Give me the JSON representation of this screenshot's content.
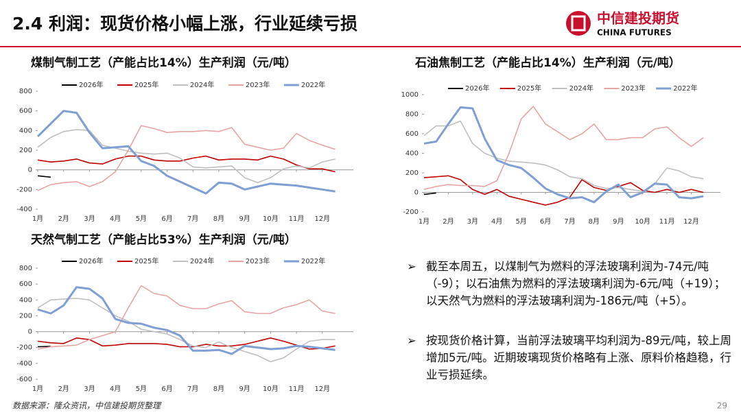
{
  "header": {
    "title": "2.4 利润：现货价格小幅上涨，行业延续亏损",
    "logo_cn": "中信建投期货",
    "logo_en": "CHINA FUTURES"
  },
  "chart_data": [
    {
      "type": "line",
      "title": "煤制气制工艺（产能占比14%）生产利润（元/吨）",
      "x": [
        1,
        1.5,
        2,
        2.5,
        3,
        3.5,
        4,
        4.5,
        5,
        5.5,
        6,
        6.5,
        7,
        7.5,
        8,
        8.5,
        9,
        9.5,
        10,
        10.5,
        11,
        11.5,
        12,
        12.5
      ],
      "xlim": [
        1,
        13.2
      ],
      "xticks": [
        {
          "value": 1,
          "label": "1月"
        },
        {
          "value": 2,
          "label": "2月"
        },
        {
          "value": 3,
          "label": "3月"
        },
        {
          "value": 4,
          "label": "4月"
        },
        {
          "value": 5,
          "label": "5月"
        },
        {
          "value": 6,
          "label": "6月"
        },
        {
          "value": 7,
          "label": "7月"
        },
        {
          "value": 8,
          "label": "8月"
        },
        {
          "value": 9,
          "label": "9月"
        },
        {
          "value": 10,
          "label": "10月"
        },
        {
          "value": 11,
          "label": "11月"
        },
        {
          "value": 12,
          "label": "12月"
        }
      ],
      "ylim": [
        -400,
        800
      ],
      "yticks": [
        -400,
        -200,
        0,
        200,
        400,
        600,
        800
      ],
      "series": [
        {
          "name": "2026年",
          "color": "#000000",
          "values": [
            -60,
            -74,
            null,
            null,
            null,
            null,
            null,
            null,
            null,
            null,
            null,
            null,
            null,
            null,
            null,
            null,
            null,
            null,
            null,
            null,
            null,
            null,
            null,
            null
          ]
        },
        {
          "name": "2025年",
          "color": "#c00000",
          "values": [
            100,
            80,
            90,
            110,
            70,
            60,
            110,
            140,
            140,
            100,
            90,
            90,
            120,
            140,
            100,
            110,
            110,
            100,
            140,
            110,
            50,
            10,
            10,
            -20
          ]
        },
        {
          "name": "2024年",
          "color": "#bfbfbf",
          "values": [
            230,
            330,
            390,
            410,
            400,
            250,
            220,
            190,
            170,
            160,
            170,
            120,
            30,
            20,
            30,
            40,
            -80,
            -130,
            -80,
            10,
            40,
            20,
            80,
            110
          ]
        },
        {
          "name": "2023年",
          "color": "#e8a3a3",
          "values": [
            -210,
            -150,
            -130,
            -120,
            -170,
            -120,
            -20,
            200,
            450,
            420,
            380,
            390,
            390,
            400,
            390,
            430,
            260,
            230,
            200,
            220,
            370,
            300,
            250,
            210
          ]
        },
        {
          "name": "2022年",
          "color": "#7f9fd4",
          "values": [
            340,
            470,
            600,
            580,
            380,
            220,
            230,
            240,
            90,
            40,
            -60,
            -120,
            -180,
            -240,
            -130,
            -140,
            -200,
            -170,
            -140,
            -150,
            -160,
            -180,
            -200,
            -220
          ]
        }
      ]
    },
    {
      "type": "line",
      "title": "石油焦制工艺（产能占比14%）生产利润（元/吨）",
      "x": [
        1,
        1.5,
        2,
        2.5,
        3,
        3.5,
        4,
        4.5,
        5,
        5.5,
        6,
        6.5,
        7,
        7.5,
        8,
        8.5,
        9,
        9.5,
        10,
        10.5,
        11,
        11.5,
        12,
        12.5
      ],
      "xlim": [
        1,
        13.2
      ],
      "xticks": [
        {
          "value": 1,
          "label": "1月"
        },
        {
          "value": 2,
          "label": "2月"
        },
        {
          "value": 3,
          "label": "3月"
        },
        {
          "value": 4,
          "label": "4月"
        },
        {
          "value": 5,
          "label": "5月"
        },
        {
          "value": 6,
          "label": "6月"
        },
        {
          "value": 7,
          "label": "7月"
        },
        {
          "value": 8,
          "label": "8月"
        },
        {
          "value": 9,
          "label": "9月"
        },
        {
          "value": 10,
          "label": "10月"
        },
        {
          "value": 11,
          "label": "11月"
        },
        {
          "value": 12,
          "label": "12月"
        }
      ],
      "ylim": [
        -200,
        1000
      ],
      "yticks": [
        -200,
        0,
        200,
        400,
        600,
        800,
        1000
      ],
      "series": [
        {
          "name": "2026年",
          "color": "#000000",
          "values": [
            -20,
            -6,
            null,
            null,
            null,
            null,
            null,
            null,
            null,
            null,
            null,
            null,
            null,
            null,
            null,
            null,
            null,
            null,
            null,
            null,
            null,
            null,
            null,
            null
          ]
        },
        {
          "name": "2025年",
          "color": "#c00000",
          "values": [
            150,
            160,
            170,
            130,
            30,
            -20,
            30,
            -40,
            -70,
            -100,
            -130,
            -100,
            -50,
            130,
            50,
            20,
            60,
            100,
            20,
            0,
            30,
            0,
            30,
            0
          ]
        },
        {
          "name": "2024年",
          "color": "#bfbfbf",
          "values": [
            580,
            680,
            680,
            730,
            500,
            400,
            350,
            320,
            310,
            300,
            280,
            230,
            160,
            140,
            70,
            40,
            50,
            30,
            10,
            90,
            250,
            220,
            160,
            140
          ]
        },
        {
          "name": "2023年",
          "color": "#e8a3a3",
          "values": [
            30,
            60,
            80,
            70,
            70,
            60,
            120,
            400,
            750,
            880,
            700,
            620,
            540,
            600,
            700,
            540,
            540,
            560,
            560,
            650,
            670,
            560,
            470,
            560
          ]
        },
        {
          "name": "2022年",
          "color": "#7f9fd4",
          "values": [
            500,
            520,
            700,
            870,
            860,
            550,
            330,
            280,
            250,
            150,
            40,
            -20,
            -60,
            -50,
            -100,
            10,
            80,
            -50,
            0,
            90,
            80,
            -50,
            -60,
            -40
          ]
        }
      ]
    },
    {
      "type": "line",
      "title": "天然气制工艺（产能占比53%）生产利润（元/吨）",
      "x": [
        1,
        1.5,
        2,
        2.5,
        3,
        3.5,
        4,
        4.5,
        5,
        5.5,
        6,
        6.5,
        7,
        7.5,
        8,
        8.5,
        9,
        9.5,
        10,
        10.5,
        11,
        11.5,
        12,
        12.5
      ],
      "xlim": [
        1,
        13.2
      ],
      "xticks": [
        {
          "value": 1,
          "label": "1月"
        },
        {
          "value": 2,
          "label": "2月"
        },
        {
          "value": 3,
          "label": "3月"
        },
        {
          "value": 4,
          "label": "4月"
        },
        {
          "value": 5,
          "label": "5月"
        },
        {
          "value": 6,
          "label": "6月"
        },
        {
          "value": 7,
          "label": "7月"
        },
        {
          "value": 8,
          "label": "8月"
        },
        {
          "value": 9,
          "label": "9月"
        },
        {
          "value": 10,
          "label": "10月"
        },
        {
          "value": 11,
          "label": "11月"
        },
        {
          "value": 12,
          "label": "12月"
        }
      ],
      "ylim": [
        -600,
        800
      ],
      "yticks": [
        -600,
        -400,
        -200,
        0,
        200,
        400,
        600,
        800
      ],
      "series": [
        {
          "name": "2026年",
          "color": "#000000",
          "values": [
            -190,
            -186,
            null,
            null,
            null,
            null,
            null,
            null,
            null,
            null,
            null,
            null,
            null,
            null,
            null,
            null,
            null,
            null,
            null,
            null,
            null,
            null,
            null,
            null
          ]
        },
        {
          "name": "2025年",
          "color": "#c00000",
          "values": [
            -120,
            -140,
            -150,
            -80,
            -100,
            -180,
            -170,
            -150,
            -150,
            -150,
            -160,
            -190,
            -190,
            -160,
            -180,
            -180,
            -160,
            -120,
            -80,
            -120,
            -170,
            -220,
            -210,
            -180
          ]
        },
        {
          "name": "2024年",
          "color": "#bfbfbf",
          "values": [
            300,
            400,
            410,
            420,
            400,
            300,
            200,
            130,
            30,
            0,
            -30,
            -100,
            -180,
            -200,
            -130,
            -200,
            -250,
            -300,
            -380,
            -330,
            -220,
            -120,
            -100,
            -100
          ]
        },
        {
          "name": "2023年",
          "color": "#e8a3a3",
          "values": [
            -220,
            -190,
            -180,
            -170,
            -100,
            -50,
            0,
            300,
            580,
            480,
            450,
            330,
            290,
            290,
            350,
            390,
            250,
            230,
            230,
            300,
            340,
            400,
            260,
            230
          ]
        },
        {
          "name": "2022年",
          "color": "#7f9fd4",
          "values": [
            280,
            230,
            330,
            560,
            540,
            420,
            160,
            110,
            100,
            50,
            20,
            -50,
            -240,
            -240,
            -230,
            -280,
            -180,
            -200,
            -220,
            -210,
            -180,
            -190,
            -210,
            -230
          ]
        }
      ]
    }
  ],
  "bullets": [
    "截至本周五，以煤制气为燃料的浮法玻璃利润为-74元/吨（-9）；以石油焦为燃料的浮法玻璃利润为-6元/吨（+19）；以天然气为燃料的浮法玻璃利润为-186元/吨（+5）。",
    "按现货价格计算，当前浮法玻璃平均利润为-89元/吨，较上周增加5元/吨。近期玻璃现货价格略有上涨、原料价格趋稳，行业亏损延续。"
  ],
  "footer": {
    "source": "数据来源：隆众资讯，中信建投期货整理",
    "page": "29"
  }
}
